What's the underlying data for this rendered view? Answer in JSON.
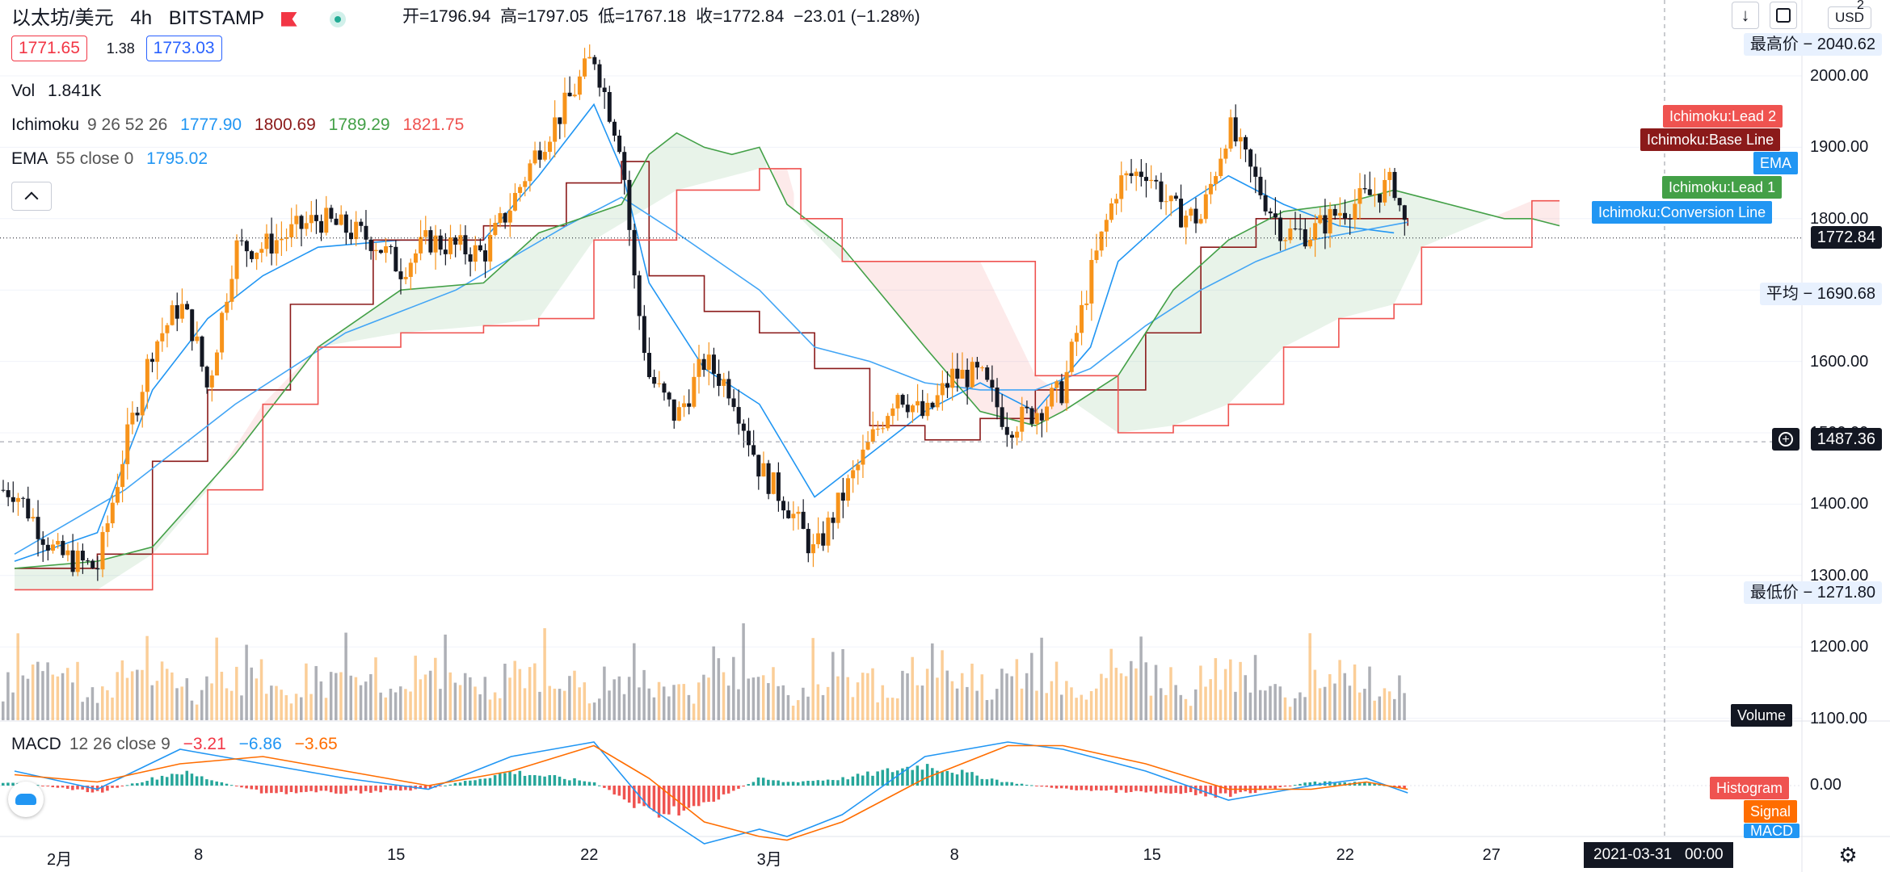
{
  "header": {
    "symbol": "以太坊/美元",
    "interval": "4h",
    "exchange": "BITSTAMP",
    "open_label": "开=1796.94",
    "high_label": "高=1797.05",
    "low_label": "低=1767.18",
    "close_label": "收=1772.84",
    "change_label": "−23.01 (−1.28%)"
  },
  "order": {
    "sell_price": "1771.65",
    "spread": "1.38",
    "buy_price": "1773.03"
  },
  "volume_legend": {
    "name": "Vol",
    "value": "1.841K"
  },
  "ichimoku_legend": {
    "name": "Ichimoku",
    "params": "9 26 52 26",
    "v1": "1777.90",
    "v2": "1800.69",
    "v3": "1789.29",
    "v4": "1821.75"
  },
  "ema_legend": {
    "name": "EMA",
    "params": "55 close 0",
    "value": "1795.02"
  },
  "macd_legend": {
    "name": "MACD",
    "params": "12 26 close 9",
    "v1": "−3.21",
    "v2": "−6.86",
    "v3": "−3.65"
  },
  "currency": "USD",
  "top_number": "2",
  "price_tags": {
    "highest": {
      "label": "最高价",
      "value": "2040.62"
    },
    "average": {
      "label": "平均",
      "value": "1690.68"
    },
    "lowest": {
      "label": "最低价",
      "value": "1271.80"
    },
    "current": "1772.84",
    "crosshair": "1487.36"
  },
  "series_labels": {
    "lead2": "Ichimoku:Lead 2",
    "base": "Ichimoku:Base Line",
    "ema": "EMA",
    "lead1": "Ichimoku:Lead 1",
    "conversion": "Ichimoku:Conversion Line",
    "volume": "Volume",
    "histogram": "Histogram",
    "signal": "Signal",
    "macd": "MACD"
  },
  "crosshair_date": "2021-03-31",
  "crosshair_time": "00:00",
  "colors": {
    "up": "#f7931a",
    "down": "#131722",
    "conversion": "#2196f3",
    "base": "#8b1a1a",
    "lead1": "#43a047",
    "lead2": "#ef5350",
    "ema": "#42a5f5",
    "macd_line": "#2196f3",
    "signal_line": "#ff6d00"
  },
  "chart_data": [
    {
      "type": "line",
      "title": "以太坊/美元 4h BITSTAMP",
      "x_ticks": [
        "2月",
        "8",
        "15",
        "22",
        "3月",
        "8",
        "15",
        "22",
        "27"
      ],
      "y_ticks": [
        2000.0,
        1900.0,
        1800.0,
        1700.0,
        1600.0,
        1500.0,
        1400.0,
        1300.0,
        1200.0,
        1100.0
      ],
      "ylim": [
        1050,
        2065
      ],
      "price_path": {
        "x": [
          0,
          1.5,
          3,
          4,
          5,
          6,
          6.5,
          7,
          8,
          9,
          10,
          11,
          13,
          14,
          15,
          16,
          17,
          18,
          19,
          20,
          21,
          21.5,
          22,
          22.5,
          23,
          24,
          25,
          26,
          27,
          28,
          29,
          30,
          32,
          33,
          34,
          35,
          36,
          37,
          38,
          39,
          40,
          41,
          42,
          43,
          44,
          45,
          46,
          47,
          48,
          50,
          50.5
        ],
        "y": [
          1420,
          1330,
          1310,
          1480,
          1620,
          1680,
          1640,
          1560,
          1760,
          1760,
          1780,
          1800,
          1770,
          1730,
          1770,
          1760,
          1750,
          1820,
          1900,
          1960,
          2030,
          1960,
          1900,
          1700,
          1580,
          1520,
          1600,
          1560,
          1450,
          1400,
          1330,
          1410,
          1560,
          1520,
          1580,
          1580,
          1510,
          1530,
          1560,
          1720,
          1850,
          1870,
          1810,
          1800,
          1930,
          1850,
          1780,
          1780,
          1810,
          1850,
          1772.84
        ]
      },
      "series": [
        {
          "name": "Ichimoku:Conversion Line",
          "x": [
            0,
            3,
            5,
            7,
            9,
            11,
            14,
            17,
            19,
            21,
            22,
            23,
            25,
            27,
            29,
            31,
            33,
            35,
            37,
            39,
            40,
            42,
            44,
            46,
            48,
            50
          ],
          "y": [
            1320,
            1360,
            1560,
            1660,
            1720,
            1760,
            1770,
            1770,
            1860,
            1960,
            1870,
            1710,
            1590,
            1540,
            1410,
            1470,
            1530,
            1570,
            1530,
            1620,
            1740,
            1810,
            1860,
            1820,
            1790,
            1780
          ]
        },
        {
          "name": "Ichimoku:Base Line",
          "x": [
            0,
            3,
            5,
            7,
            10,
            13,
            15,
            17,
            20,
            22,
            23,
            25,
            27,
            29,
            31,
            33,
            35,
            37,
            39,
            41,
            43,
            45,
            47,
            49,
            50.5
          ],
          "y": [
            1310,
            1330,
            1460,
            1560,
            1680,
            1770,
            1770,
            1790,
            1850,
            1880,
            1720,
            1670,
            1640,
            1590,
            1510,
            1490,
            1520,
            1560,
            1560,
            1640,
            1760,
            1800,
            1800,
            1800,
            1790
          ]
        },
        {
          "name": "EMA",
          "x": [
            0,
            4,
            8,
            12,
            16,
            20,
            22,
            24,
            27,
            29,
            31,
            33,
            35,
            37,
            39,
            41,
            43,
            45,
            47,
            50.5
          ],
          "y": [
            1330,
            1420,
            1540,
            1640,
            1700,
            1790,
            1830,
            1780,
            1700,
            1620,
            1600,
            1570,
            1560,
            1560,
            1590,
            1650,
            1700,
            1740,
            1770,
            1795
          ]
        },
        {
          "name": "Ichimoku:Lead 1",
          "x": [
            0,
            3,
            5,
            8,
            11,
            14,
            17,
            19,
            22,
            23,
            24,
            25,
            26,
            27,
            28,
            30,
            33,
            35,
            37,
            38,
            40,
            42,
            44,
            46,
            48,
            50,
            52,
            54,
            55,
            56
          ],
          "y": [
            1310,
            1320,
            1340,
            1470,
            1620,
            1700,
            1710,
            1780,
            1820,
            1890,
            1920,
            1900,
            1890,
            1900,
            1820,
            1760,
            1620,
            1530,
            1510,
            1530,
            1580,
            1700,
            1770,
            1810,
            1820,
            1840,
            1820,
            1800,
            1800,
            1790
          ]
        },
        {
          "name": "Ichimoku:Lead 2",
          "x": [
            0,
            3,
            5,
            7,
            9,
            11,
            14,
            17,
            19,
            21,
            24,
            27,
            28,
            28.5,
            30,
            33,
            35,
            37,
            40,
            42,
            44,
            46,
            48,
            50,
            51,
            55,
            56
          ],
          "y": [
            1280,
            1280,
            1330,
            1420,
            1540,
            1620,
            1640,
            1650,
            1660,
            1770,
            1840,
            1870,
            1870,
            1800,
            1740,
            1740,
            1740,
            1580,
            1500,
            1510,
            1540,
            1620,
            1660,
            1680,
            1760,
            1825,
            1825
          ]
        }
      ]
    },
    {
      "type": "bar",
      "title": "Volume",
      "note": "volume histogram; bars colored by candle direction, alternating pattern",
      "values_relative": [
        0.4,
        0.6,
        0.5,
        0.9,
        0.7,
        0.5,
        0.6,
        0.8,
        0.55,
        1.0,
        0.6,
        0.45,
        0.7,
        0.55,
        0.5,
        0.65,
        0.4,
        0.5,
        0.35,
        0.3
      ]
    },
    {
      "type": "line",
      "title": "MACD",
      "y_ticks": [
        0.0
      ],
      "series": [
        {
          "name": "MACD",
          "x": [
            0,
            3,
            6,
            9,
            12,
            15,
            18,
            21,
            23,
            25,
            27,
            28,
            30,
            33,
            36,
            38,
            41,
            44,
            47,
            49,
            50.5
          ],
          "y": [
            20,
            -5,
            50,
            30,
            10,
            -5,
            40,
            60,
            -30,
            -80,
            -60,
            -70,
            -40,
            40,
            60,
            50,
            20,
            -20,
            0,
            10,
            -10
          ]
        },
        {
          "name": "Signal",
          "x": [
            0,
            3,
            6,
            9,
            12,
            15,
            18,
            21,
            23,
            25,
            27,
            28,
            30,
            33,
            36,
            38,
            41,
            44,
            47,
            49,
            50.5
          ],
          "y": [
            15,
            5,
            30,
            40,
            20,
            0,
            20,
            55,
            10,
            -50,
            -70,
            -75,
            -50,
            10,
            55,
            55,
            30,
            -5,
            -5,
            5,
            -5
          ]
        },
        {
          "name": "Histogram",
          "x": [
            0,
            3,
            6,
            9,
            12,
            15,
            18,
            21,
            23,
            25,
            27,
            28,
            30,
            33,
            36,
            38,
            41,
            44,
            47,
            49,
            50.5
          ],
          "y": [
            5,
            -10,
            20,
            -10,
            -10,
            -5,
            20,
            5,
            -40,
            -30,
            10,
            5,
            10,
            30,
            5,
            -5,
            -10,
            -15,
            5,
            5,
            -5
          ]
        }
      ]
    }
  ]
}
